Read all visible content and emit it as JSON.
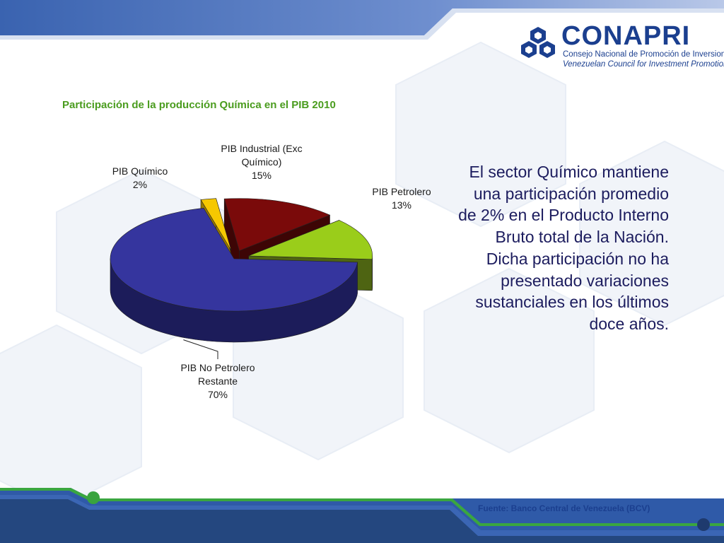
{
  "brand": {
    "name": "CONAPRI",
    "line1": "Consejo Nacional de Promoción de Inversiones",
    "line2": "Venezuelan Council for Investment Promotion"
  },
  "chart_data": {
    "type": "pie",
    "title": "Participación de la producción Química en el PIB 2010",
    "slices": [
      {
        "label": "PIB Industrial (Exc Químico)",
        "value": 15,
        "value_label": "15%",
        "color": "#7a0a0a",
        "side": "#3d0505",
        "exploded": true
      },
      {
        "label": "PIB Petrolero",
        "value": 13,
        "value_label": "13%",
        "color": "#9acd1a",
        "side": "#4e6412",
        "exploded": true
      },
      {
        "label": "PIB No Petrolero Restante",
        "value": 70,
        "value_label": "70%",
        "color": "#35359e",
        "side": "#1c1c5a",
        "exploded": false
      },
      {
        "label": "PIB Químico",
        "value": 2,
        "value_label": "2%",
        "color": "#f6c800",
        "side": "#9a7b00",
        "exploded": true
      }
    ]
  },
  "labels": {
    "industrial_1": "PIB Industrial (Exc",
    "industrial_2": "Químico)",
    "industrial_3": "15%",
    "petrolero_1": "PIB Petrolero",
    "petrolero_2": "13%",
    "quimico_1": "PIB Químico",
    "quimico_2": "2%",
    "nopetrolero_1": "PIB No Petrolero",
    "nopetrolero_2": "Restante",
    "nopetrolero_3": "70%"
  },
  "body_text": "El sector Químico mantiene una participación promedio de 2% en el Producto Interno Bruto total de la Nación. Dicha participación no ha presentado variaciones sustanciales en los últimos doce años.",
  "source": "Fuente: Banco Central de Venezuela (BCV)",
  "colors": {
    "accent_green": "#4a9c1e",
    "brand_blue": "#1b3f8f",
    "text_navy": "#1c1c5e"
  }
}
